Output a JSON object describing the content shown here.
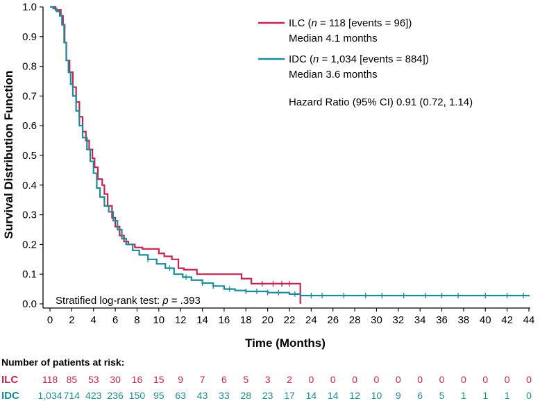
{
  "chart_data": {
    "type": "line",
    "subtype": "kaplan-meier",
    "xlabel": "Time (Months)",
    "ylabel": "Survival Distribution Function",
    "xlim": [
      0,
      44
    ],
    "ylim": [
      0,
      1.0
    ],
    "x_ticks": [
      "0",
      "2",
      "4",
      "6",
      "8",
      "10",
      "12",
      "14",
      "16",
      "18",
      "20",
      "22",
      "24",
      "26",
      "28",
      "30",
      "32",
      "34",
      "36",
      "38",
      "40",
      "42",
      "44"
    ],
    "y_ticks": [
      "0.0",
      "0.1",
      "0.2",
      "0.3",
      "0.4",
      "0.5",
      "0.6",
      "0.7",
      "0.8",
      "0.9",
      "1.0"
    ],
    "series": [
      {
        "name": "ILC",
        "color": "#c8234e",
        "legend_main": "ILC (",
        "legend_n": "n",
        "legend_rest": " = 118 [events = 96])",
        "legend_median": "Median 4.1 months",
        "points": [
          [
            0,
            1.0
          ],
          [
            0.5,
            0.99
          ],
          [
            1.0,
            0.97
          ],
          [
            1.2,
            0.94
          ],
          [
            1.35,
            0.88
          ],
          [
            1.5,
            0.82
          ],
          [
            1.8,
            0.78
          ],
          [
            2.1,
            0.73
          ],
          [
            2.4,
            0.68
          ],
          [
            2.7,
            0.63
          ],
          [
            3.0,
            0.58
          ],
          [
            3.3,
            0.55
          ],
          [
            3.6,
            0.52
          ],
          [
            3.9,
            0.49
          ],
          [
            4.1,
            0.46
          ],
          [
            4.4,
            0.42
          ],
          [
            4.8,
            0.4
          ],
          [
            5.0,
            0.37
          ],
          [
            5.3,
            0.33
          ],
          [
            5.7,
            0.29
          ],
          [
            6.0,
            0.26
          ],
          [
            6.4,
            0.23
          ],
          [
            6.8,
            0.21
          ],
          [
            7.2,
            0.2
          ],
          [
            7.8,
            0.19
          ],
          [
            8.5,
            0.185
          ],
          [
            10.0,
            0.17
          ],
          [
            10.5,
            0.16
          ],
          [
            11.2,
            0.15
          ],
          [
            11.8,
            0.12
          ],
          [
            12.3,
            0.115
          ],
          [
            13.5,
            0.1
          ],
          [
            17.6,
            0.085
          ],
          [
            18.5,
            0.068
          ],
          [
            23.0,
            0.068
          ],
          [
            23.0,
            0.0
          ]
        ],
        "censor_x": [
          19.5,
          20.5,
          21.3,
          22.0
        ]
      },
      {
        "name": "IDC",
        "color": "#1b8a9b",
        "legend_main": "IDC (",
        "legend_n": "n",
        "legend_rest": " = 1,034 [events = 884])",
        "legend_median": "Median 3.6 months",
        "points": [
          [
            0,
            1.0
          ],
          [
            0.3,
            0.995
          ],
          [
            0.6,
            0.985
          ],
          [
            0.9,
            0.97
          ],
          [
            1.1,
            0.94
          ],
          [
            1.3,
            0.88
          ],
          [
            1.5,
            0.82
          ],
          [
            1.7,
            0.78
          ],
          [
            1.9,
            0.74
          ],
          [
            2.1,
            0.7
          ],
          [
            2.4,
            0.65
          ],
          [
            2.7,
            0.6
          ],
          [
            3.0,
            0.56
          ],
          [
            3.4,
            0.52
          ],
          [
            3.7,
            0.48
          ],
          [
            4.0,
            0.44
          ],
          [
            4.3,
            0.39
          ],
          [
            4.6,
            0.36
          ],
          [
            5.0,
            0.33
          ],
          [
            5.4,
            0.31
          ],
          [
            5.8,
            0.28
          ],
          [
            6.2,
            0.25
          ],
          [
            6.6,
            0.22
          ],
          [
            7.0,
            0.2
          ],
          [
            7.6,
            0.18
          ],
          [
            8.2,
            0.165
          ],
          [
            9.0,
            0.15
          ],
          [
            9.8,
            0.135
          ],
          [
            10.6,
            0.12
          ],
          [
            11.4,
            0.1
          ],
          [
            12.2,
            0.09
          ],
          [
            13.0,
            0.08
          ],
          [
            14.0,
            0.07
          ],
          [
            15.0,
            0.06
          ],
          [
            16.0,
            0.05
          ],
          [
            17.0,
            0.045
          ],
          [
            18.0,
            0.042
          ],
          [
            20.0,
            0.038
          ],
          [
            22.0,
            0.033
          ],
          [
            23.0,
            0.028
          ],
          [
            44.0,
            0.025
          ]
        ],
        "censor_x": [
          9.0,
          11.0,
          12.5,
          14.0,
          15.0,
          16.5,
          18.0,
          19.0,
          20.0,
          21.0,
          22.5,
          24.0,
          25.0,
          27.0,
          29.0,
          30.5,
          32.5,
          34.5,
          36.0,
          37.5,
          40.0,
          42.0,
          43.5
        ]
      }
    ],
    "hazard_ratio": "Hazard Ratio (95% CI) 0.91 (0.72, 1.14)",
    "logrank_text": "Stratified log-rank test:",
    "logrank_p_symbol": "p",
    "logrank_p_value": " = .393"
  },
  "risk_table": {
    "title": "Number of patients at risk:",
    "rows": [
      {
        "label": "ILC",
        "color": "#c8234e",
        "values": [
          "118",
          "85",
          "53",
          "30",
          "16",
          "15",
          "9",
          "7",
          "6",
          "5",
          "3",
          "2",
          "0",
          "0",
          "0",
          "0",
          "0",
          "0",
          "0",
          "0",
          "0",
          "0",
          "0"
        ]
      },
      {
        "label": "IDC",
        "color": "#1b8a9b",
        "values": [
          "1,034",
          "714",
          "423",
          "236",
          "150",
          "95",
          "63",
          "43",
          "33",
          "28",
          "23",
          "17",
          "14",
          "14",
          "12",
          "10",
          "9",
          "6",
          "5",
          "1",
          "1",
          "1",
          "0"
        ]
      }
    ]
  }
}
